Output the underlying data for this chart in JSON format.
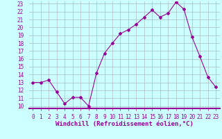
{
  "x": [
    0,
    1,
    2,
    3,
    4,
    5,
    6,
    7,
    8,
    9,
    10,
    11,
    12,
    13,
    14,
    15,
    16,
    17,
    18,
    19,
    20,
    21,
    22,
    23
  ],
  "y": [
    13,
    13,
    13.3,
    11.8,
    10.3,
    11.1,
    11.1,
    10.0,
    14.2,
    16.7,
    18.0,
    19.2,
    19.7,
    20.4,
    21.3,
    22.2,
    21.3,
    21.8,
    23.2,
    22.3,
    18.8,
    16.3,
    13.7,
    12.4
  ],
  "line_color": "#990099",
  "marker": "D",
  "marker_size": 2,
  "bg_color": "#ccffff",
  "grid_color": "#aabbbb",
  "xlabel": "Windchill (Refroidissement éolien,°C)",
  "ylim": [
    10,
    23
  ],
  "xlim": [
    0,
    23
  ],
  "yticks": [
    10,
    11,
    12,
    13,
    14,
    15,
    16,
    17,
    18,
    19,
    20,
    21,
    22,
    23
  ],
  "xticks": [
    0,
    1,
    2,
    3,
    4,
    5,
    6,
    7,
    8,
    9,
    10,
    11,
    12,
    13,
    14,
    15,
    16,
    17,
    18,
    19,
    20,
    21,
    22,
    23
  ],
  "xlabel_color": "#990099",
  "tick_color": "#990099",
  "axis_bottom_color": "#990099",
  "label_fontsize": 6.5,
  "tick_fontsize": 5.5
}
